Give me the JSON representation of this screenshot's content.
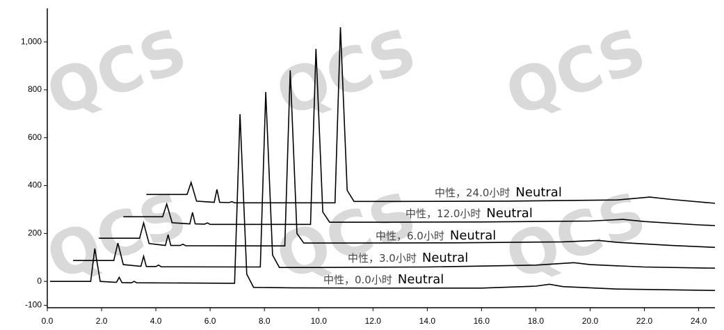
{
  "chart_data": {
    "type": "line",
    "watermark": "QCS",
    "xlim": [
      0,
      24.6
    ],
    "ylim": [
      -110,
      1140
    ],
    "xticks": [
      {
        "value": 0,
        "label": "0.0"
      },
      {
        "value": 2,
        "label": "2.0"
      },
      {
        "value": 4,
        "label": "4.0"
      },
      {
        "value": 6,
        "label": "6.0"
      },
      {
        "value": 8,
        "label": "8.0"
      },
      {
        "value": 10,
        "label": "10.0"
      },
      {
        "value": 12,
        "label": "12.0"
      },
      {
        "value": 14,
        "label": "14.0"
      },
      {
        "value": 16,
        "label": "16.0"
      },
      {
        "value": 18,
        "label": "18.0"
      },
      {
        "value": 20,
        "label": "20.0"
      },
      {
        "value": 22,
        "label": "22.0"
      },
      {
        "value": 24,
        "label": "24.0"
      }
    ],
    "yticks": [
      -100,
      0,
      200,
      400,
      600,
      800,
      {
        "value": 1000,
        "label": "1,000"
      }
    ],
    "series": [
      {
        "name": "中性，0.0小时",
        "tag": "Neutral",
        "color": "#000000",
        "x": [
          0.1,
          1.6,
          1.75,
          1.95,
          2.55,
          2.65,
          2.75,
          3.1,
          3.2,
          3.3,
          6.9,
          7.1,
          7.35,
          7.6,
          9,
          12,
          16,
          18,
          18.5,
          19,
          21,
          24.6
        ],
        "values": [
          0,
          0,
          137,
          0,
          -4,
          17,
          -5,
          -6,
          0,
          -6,
          -8,
          698,
          30,
          -25,
          -27,
          -28,
          -28,
          -20,
          -12,
          -22,
          -32,
          -38
        ]
      },
      {
        "name": "中性，3.0小时",
        "tag": "Neutral",
        "color": "#000000",
        "x": [
          0.95,
          2.45,
          2.6,
          2.8,
          3.45,
          3.55,
          3.65,
          4,
          4.1,
          4.2,
          7.85,
          8.05,
          8.3,
          8.55,
          10,
          14,
          18,
          19.4,
          20,
          22,
          24.6
        ],
        "values": [
          87,
          87,
          160,
          70,
          63,
          105,
          62,
          62,
          68,
          61,
          60,
          791,
          110,
          58,
          58,
          60,
          68,
          78,
          70,
          60,
          55
        ]
      },
      {
        "name": "中性，6.0小时",
        "tag": "Neutral",
        "color": "#000000",
        "x": [
          1.9,
          3.4,
          3.55,
          3.75,
          4.35,
          4.45,
          4.55,
          4.9,
          5,
          5.1,
          8.75,
          8.95,
          9.2,
          9.45,
          11,
          15,
          19,
          20.3,
          21,
          23,
          24.6
        ],
        "values": [
          180,
          180,
          244,
          158,
          150,
          195,
          150,
          150,
          155,
          149,
          148,
          881,
          200,
          160,
          160,
          161,
          165,
          171,
          163,
          150,
          142
        ]
      },
      {
        "name": "中性，12.0小时",
        "tag": "Neutral",
        "color": "#000000",
        "x": [
          2.8,
          4.25,
          4.4,
          4.6,
          5.25,
          5.35,
          5.45,
          5.8,
          5.9,
          6,
          9.7,
          9.9,
          10.15,
          10.4,
          12,
          16,
          20,
          21.2,
          22,
          24,
          24.6
        ],
        "values": [
          270,
          270,
          323,
          245,
          240,
          288,
          240,
          239,
          244,
          238,
          238,
          971,
          290,
          247,
          247,
          248,
          252,
          259,
          250,
          236,
          233
        ]
      },
      {
        "name": "中性，24.0小时",
        "tag": "Neutral",
        "color": "#000000",
        "x": [
          3.65,
          5.15,
          5.3,
          5.5,
          6.15,
          6.25,
          6.35,
          6.7,
          6.8,
          6.9,
          10.6,
          10.8,
          11.05,
          11.3,
          13,
          17,
          21,
          22.2,
          23,
          24.6
        ],
        "values": [
          363,
          363,
          413,
          335,
          330,
          384,
          330,
          329,
          333,
          328,
          328,
          1061,
          380,
          334,
          334,
          335,
          340,
          352,
          342,
          326
        ]
      }
    ]
  }
}
